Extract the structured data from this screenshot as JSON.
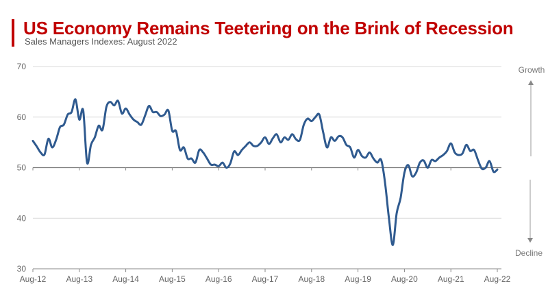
{
  "chart_data": {
    "type": "line",
    "title": "US Economy Remains Teetering on the Brink of Recession",
    "subtitle": "Sales Managers Indexes: August 2022",
    "xlabel": "",
    "ylabel": "",
    "ylim": [
      30,
      70
    ],
    "yticks": [
      30,
      40,
      50,
      60,
      70
    ],
    "xticks": [
      "Aug-12",
      "Aug-13",
      "Aug-14",
      "Aug-15",
      "Aug-16",
      "Aug-17",
      "Aug-18",
      "Aug-19",
      "Aug-20",
      "Aug-21",
      "Aug-22"
    ],
    "x_start": "Aug-12",
    "x_frequency": "monthly",
    "grid": true,
    "reference_line": 50,
    "line_color": "#2f5a8f",
    "annotations": {
      "up": "Growth",
      "down": "Decline"
    },
    "values": [
      55.3,
      54.2,
      53,
      52.6,
      55.7,
      54,
      55.5,
      58,
      58.5,
      60.5,
      61,
      63.5,
      59.5,
      61.3,
      51,
      54.5,
      56,
      58.3,
      57.5,
      62,
      63,
      62.3,
      63.2,
      60.7,
      61.7,
      60.5,
      59.5,
      59,
      58.5,
      60.3,
      62.2,
      61,
      61,
      60.2,
      60.5,
      61.3,
      57.3,
      57.2,
      53.5,
      54,
      51.8,
      51.8,
      51,
      53.5,
      53,
      51.8,
      50.6,
      50.6,
      50.3,
      51,
      50,
      50.8,
      53.2,
      52.5,
      53.5,
      54.3,
      55,
      54.3,
      54.3,
      55,
      56,
      54.7,
      55.8,
      56.6,
      55,
      56,
      55.5,
      56.6,
      55.6,
      55.5,
      58.5,
      59.7,
      59.2,
      60,
      60.5,
      57,
      54,
      56,
      55.3,
      56.2,
      56,
      54.5,
      54,
      52,
      53.5,
      52.3,
      52,
      53,
      51.8,
      51,
      51.5,
      47,
      40,
      34.7,
      41,
      44,
      49,
      50.5,
      48.3,
      49,
      51,
      51.4,
      50,
      51.5,
      51.3,
      52,
      52.5,
      53.3,
      54.8,
      53,
      52.5,
      52.8,
      54.5,
      53.3,
      53.5,
      51.5,
      49.8,
      50,
      51.3,
      49.2,
      49.6
    ]
  }
}
